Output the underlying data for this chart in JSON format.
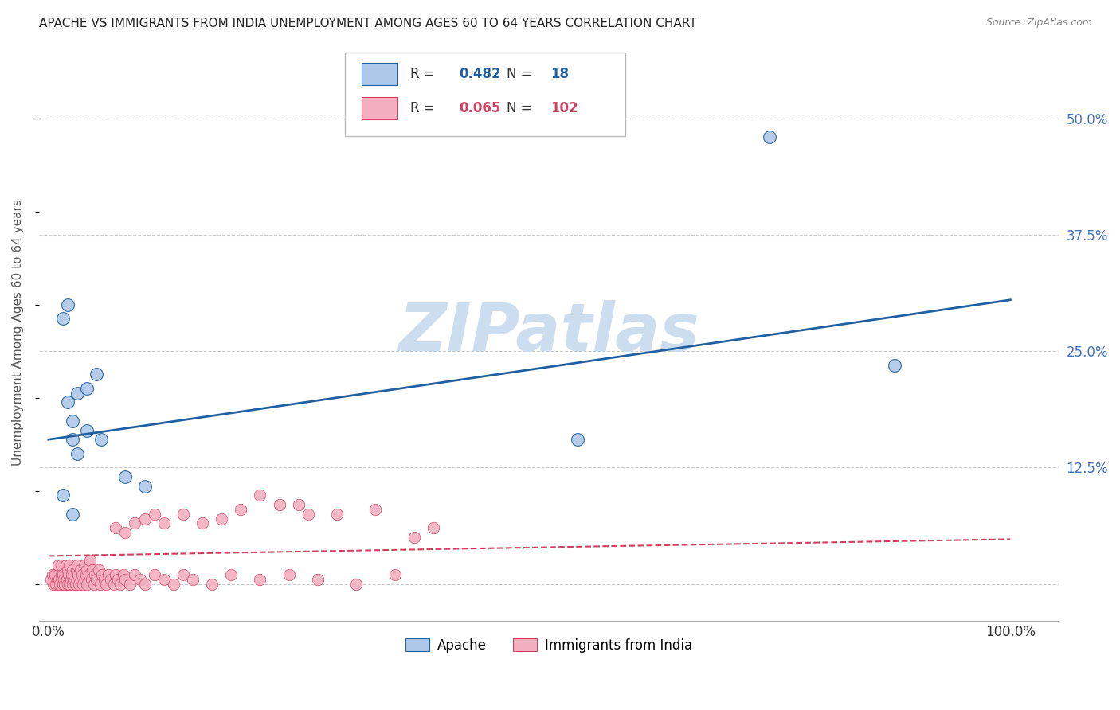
{
  "title": "APACHE VS IMMIGRANTS FROM INDIA UNEMPLOYMENT AMONG AGES 60 TO 64 YEARS CORRELATION CHART",
  "source": "Source: ZipAtlas.com",
  "ylabel": "Unemployment Among Ages 60 to 64 years",
  "xlim": [
    -0.01,
    1.05
  ],
  "ylim": [
    -0.04,
    0.58
  ],
  "apache_R": "0.482",
  "apache_N": "18",
  "india_R": "0.065",
  "india_N": "102",
  "apache_color": "#adc8e8",
  "india_color": "#f2afc0",
  "apache_line_color": "#2060a0",
  "india_line_color": "#d04060",
  "apache_scatter_x": [
    0.015,
    0.02,
    0.025,
    0.02,
    0.025,
    0.03,
    0.04,
    0.05,
    0.04,
    0.055,
    0.08,
    0.1,
    0.015,
    0.025,
    0.03,
    0.75,
    0.88,
    0.55
  ],
  "apache_scatter_y": [
    0.285,
    0.3,
    0.155,
    0.195,
    0.175,
    0.205,
    0.165,
    0.225,
    0.21,
    0.155,
    0.115,
    0.105,
    0.095,
    0.075,
    0.14,
    0.48,
    0.235,
    0.155
  ],
  "apache_line_x0": 0.0,
  "apache_line_y0": 0.155,
  "apache_line_x1": 1.0,
  "apache_line_y1": 0.305,
  "india_line_x0": 0.0,
  "india_line_y0": 0.03,
  "india_line_x1": 1.0,
  "india_line_y1": 0.048,
  "india_scatter_x": [
    0.003,
    0.004,
    0.005,
    0.006,
    0.007,
    0.008,
    0.009,
    0.01,
    0.01,
    0.01,
    0.011,
    0.012,
    0.013,
    0.013,
    0.014,
    0.015,
    0.015,
    0.016,
    0.017,
    0.018,
    0.018,
    0.019,
    0.02,
    0.02,
    0.021,
    0.022,
    0.022,
    0.023,
    0.024,
    0.025,
    0.025,
    0.026,
    0.027,
    0.028,
    0.029,
    0.03,
    0.03,
    0.031,
    0.032,
    0.033,
    0.034,
    0.035,
    0.036,
    0.037,
    0.038,
    0.039,
    0.04,
    0.04,
    0.042,
    0.043,
    0.045,
    0.046,
    0.047,
    0.048,
    0.05,
    0.052,
    0.054,
    0.056,
    0.058,
    0.06,
    0.062,
    0.065,
    0.068,
    0.07,
    0.072,
    0.075,
    0.078,
    0.08,
    0.085,
    0.09,
    0.095,
    0.1,
    0.11,
    0.12,
    0.13,
    0.14,
    0.15,
    0.17,
    0.19,
    0.22,
    0.25,
    0.28,
    0.32,
    0.36,
    0.38,
    0.4,
    0.22,
    0.26,
    0.3,
    0.34,
    0.07,
    0.08,
    0.09,
    0.1,
    0.11,
    0.12,
    0.14,
    0.16,
    0.18,
    0.2,
    0.24,
    0.27
  ],
  "india_scatter_y": [
    0.005,
    0.01,
    0.0,
    0.005,
    0.01,
    0.0,
    0.005,
    0.0,
    0.01,
    0.02,
    0.005,
    0.0,
    0.01,
    0.02,
    0.005,
    0.0,
    0.01,
    0.005,
    0.0,
    0.01,
    0.02,
    0.005,
    0.0,
    0.015,
    0.01,
    0.0,
    0.02,
    0.005,
    0.01,
    0.0,
    0.015,
    0.005,
    0.01,
    0.0,
    0.015,
    0.005,
    0.02,
    0.01,
    0.0,
    0.015,
    0.005,
    0.01,
    0.0,
    0.02,
    0.005,
    0.01,
    0.0,
    0.015,
    0.01,
    0.025,
    0.005,
    0.015,
    0.0,
    0.01,
    0.005,
    0.015,
    0.0,
    0.01,
    0.005,
    0.0,
    0.01,
    0.005,
    0.0,
    0.01,
    0.005,
    0.0,
    0.01,
    0.005,
    0.0,
    0.01,
    0.005,
    0.0,
    0.01,
    0.005,
    0.0,
    0.01,
    0.005,
    0.0,
    0.01,
    0.005,
    0.01,
    0.005,
    0.0,
    0.01,
    0.05,
    0.06,
    0.095,
    0.085,
    0.075,
    0.08,
    0.06,
    0.055,
    0.065,
    0.07,
    0.075,
    0.065,
    0.075,
    0.065,
    0.07,
    0.08,
    0.085,
    0.075
  ],
  "background_color": "#ffffff",
  "grid_color": "#cccccc",
  "title_color": "#222222",
  "axis_label_color": "#555555",
  "right_tick_color": "#4472c4",
  "ytick_positions": [
    0.0,
    0.125,
    0.25,
    0.375,
    0.5
  ],
  "ytick_labels": [
    "",
    "12.5%",
    "25.0%",
    "37.5%",
    "50.0%"
  ],
  "xtick_positions": [
    0.0,
    1.0
  ],
  "xtick_labels": [
    "0.0%",
    "100.0%"
  ],
  "watermark": "ZIPatlas",
  "watermark_color": "#ccddf0"
}
